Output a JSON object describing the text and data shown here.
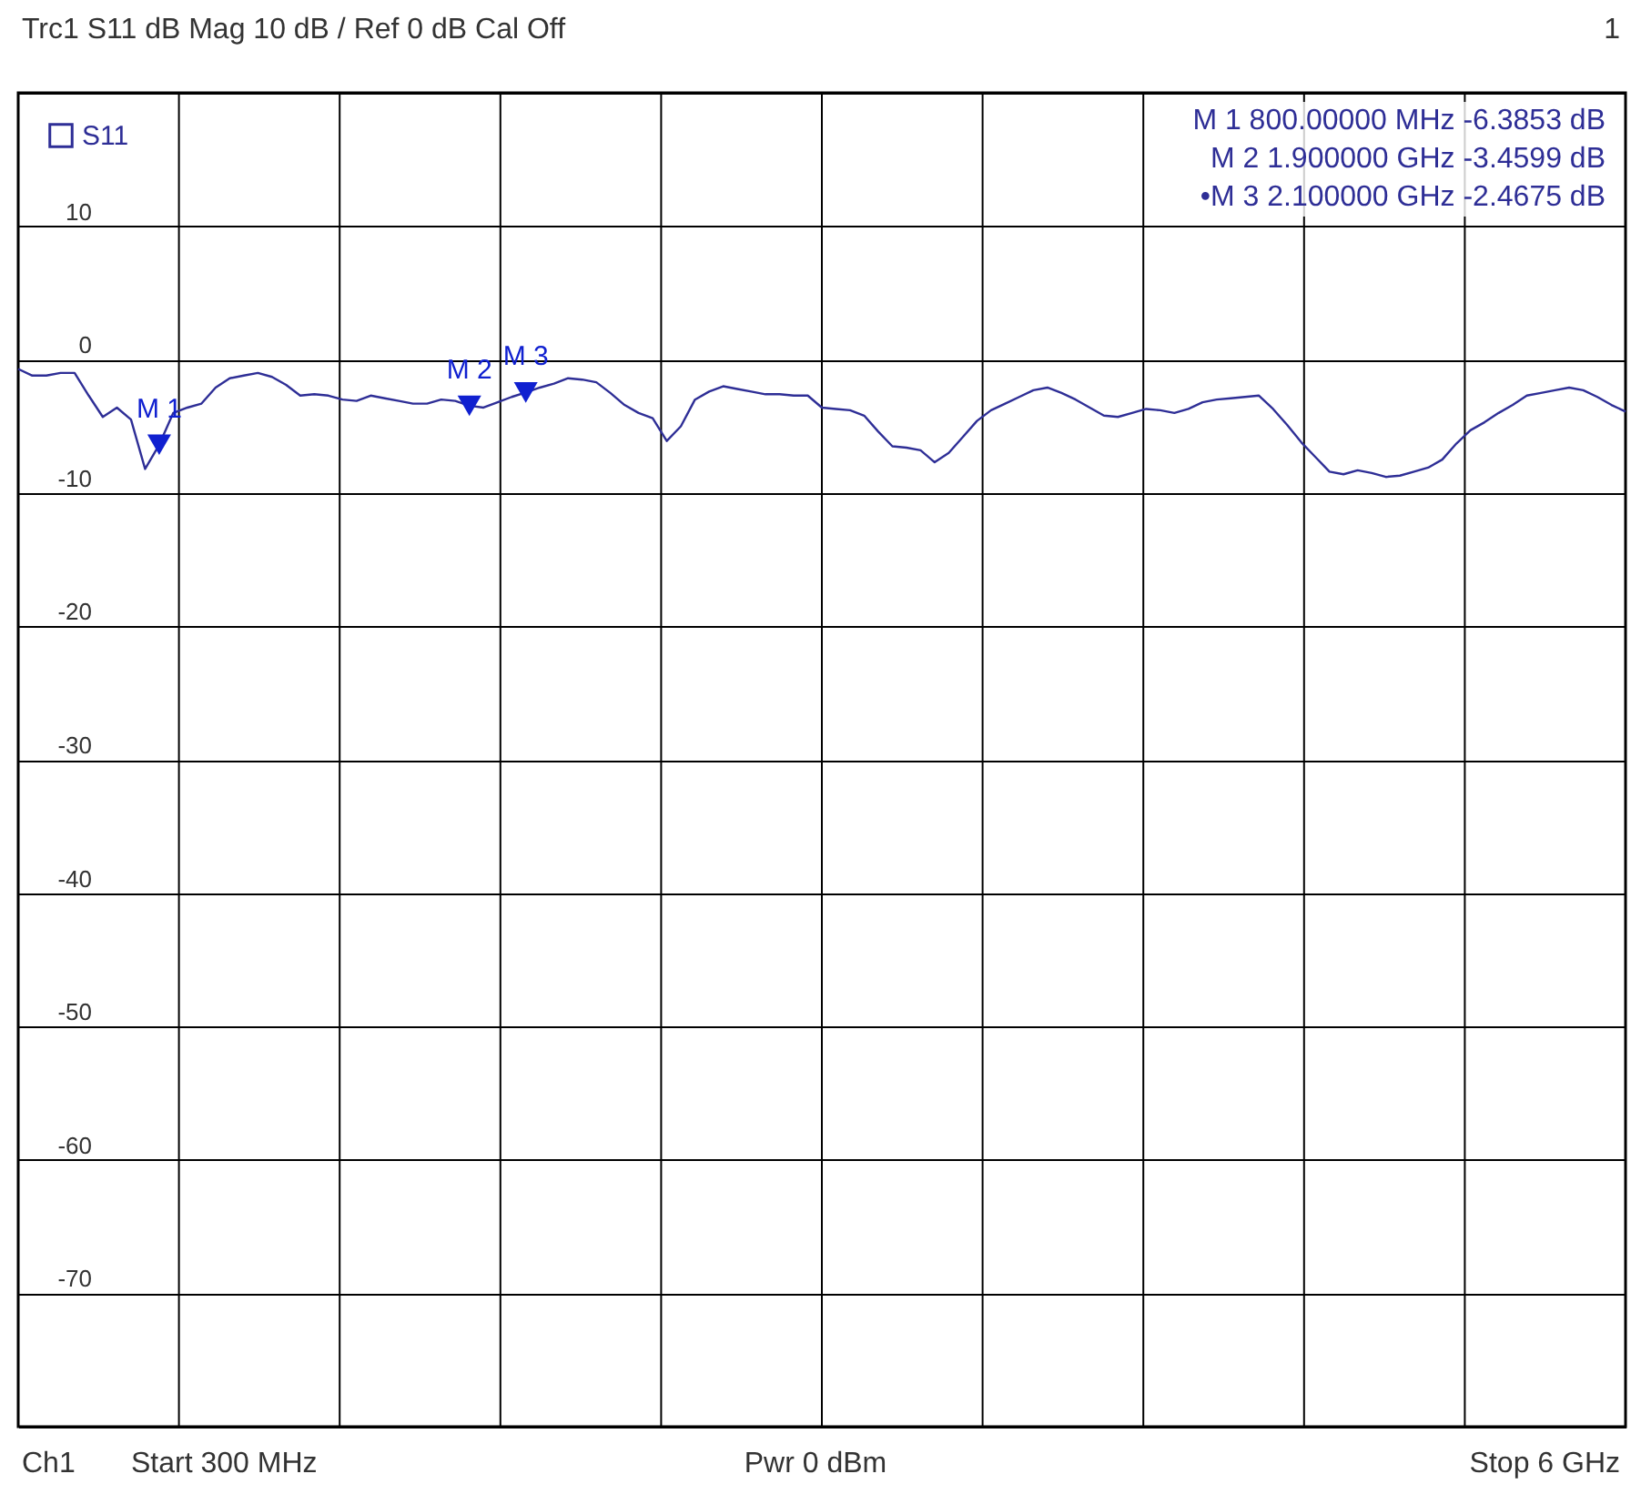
{
  "chart_data": {
    "type": "line",
    "title": "Trc1 S11 dB Mag 10 dB / Ref 0 dB Cal Off",
    "categories": [
      null,
      null,
      null,
      null,
      null,
      null,
      null,
      null,
      null,
      null,
      null,
      null,
      null,
      null,
      null,
      null,
      null,
      null,
      null,
      null,
      null,
      null,
      null,
      null,
      null,
      null,
      null,
      null,
      null,
      null,
      null,
      null,
      null,
      null,
      null,
      null,
      null,
      null,
      null,
      null,
      null,
      null,
      null,
      null,
      null,
      null,
      null,
      null,
      null,
      null,
      null,
      null,
      null,
      null,
      null,
      null,
      null,
      null,
      null,
      null,
      null,
      null,
      null,
      null,
      null,
      null,
      null,
      null,
      null,
      null,
      null,
      null,
      null,
      null,
      null,
      null,
      null,
      null,
      null,
      null,
      null,
      null,
      null,
      null,
      null,
      null,
      null,
      null,
      null,
      null,
      null,
      null,
      null,
      null,
      null,
      null,
      null,
      null,
      null,
      null,
      null,
      null,
      null,
      null,
      null,
      null,
      null,
      null,
      null,
      null,
      null,
      null,
      null,
      null,
      null
    ],
    "series": [
      {
        "name": "S11",
        "color": "#2e2e96",
        "values": [
          -0.7,
          -1.2,
          -1.2,
          -1.0,
          -1.0,
          -2.7,
          -4.3,
          -3.6,
          -4.5,
          -8.2,
          -6.3853,
          -4.0,
          -3.6,
          -3.3,
          -2.1,
          -1.4,
          -1.2,
          -1.0,
          -1.3,
          -1.9,
          -2.7,
          -2.6,
          -2.7,
          -3.0,
          -3.1,
          -2.7,
          -2.9,
          -3.1,
          -3.3,
          -3.3,
          -3.0,
          -3.1,
          -3.4599,
          -3.6,
          -3.2,
          -2.8,
          -2.4675,
          -2.1,
          -1.8,
          -1.4,
          -1.5,
          -1.7,
          -2.5,
          -3.4,
          -4.0,
          -4.4,
          -6.1,
          -5.0,
          -3.0,
          -2.4,
          -2.0,
          -2.2,
          -2.4,
          -2.6,
          -2.6,
          -2.7,
          -2.7,
          -3.6,
          -3.7,
          -3.8,
          -4.2,
          -5.4,
          -6.5,
          -6.6,
          -6.8,
          -7.7,
          -7.0,
          -5.8,
          -4.6,
          -3.8,
          -3.3,
          -2.8,
          -2.3,
          -2.1,
          -2.5,
          -3.0,
          -3.6,
          -4.2,
          -4.3,
          -4.0,
          -3.7,
          -3.8,
          -4.0,
          -3.7,
          -3.2,
          -3.0,
          -2.9,
          -2.8,
          -2.7,
          -3.7,
          -4.9,
          -6.2,
          -7.3,
          -8.4,
          -8.6,
          -8.3,
          -8.5,
          -8.8,
          -8.7,
          -8.4,
          -8.1,
          -7.5,
          -6.3,
          -5.3,
          -4.7,
          -4.0,
          -3.4,
          -2.7,
          -2.5,
          -2.3,
          -2.1,
          -2.3,
          -2.8,
          -3.4,
          -3.9
        ]
      },
      {
        "type": "scatter",
        "marker": "triangle",
        "color": "#1020d0",
        "values": [
          null,
          null,
          null,
          null,
          null,
          null,
          null,
          null,
          null,
          null,
          -6.3853,
          null,
          null,
          null,
          null,
          null,
          null,
          null,
          null,
          null,
          null,
          null,
          null,
          null,
          null,
          null,
          null,
          null,
          null,
          null,
          null,
          null,
          -3.4599,
          null,
          null,
          null,
          -2.4675,
          null,
          null,
          null,
          null,
          null,
          null,
          null,
          null,
          null,
          null,
          null,
          null,
          null,
          null,
          null,
          null,
          null,
          null,
          null,
          null,
          null,
          null,
          null,
          null,
          null,
          null,
          null,
          null,
          null,
          null,
          null,
          null,
          null,
          null,
          null,
          null,
          null,
          null,
          null,
          null,
          null,
          null,
          null,
          null,
          null,
          null,
          null,
          null,
          null,
          null,
          null,
          null,
          null,
          null,
          null,
          null,
          null,
          null,
          null,
          null,
          null,
          null,
          null,
          null,
          null,
          null,
          null,
          null,
          null,
          null,
          null,
          null,
          null,
          null,
          null,
          null,
          null,
          null
        ],
        "value_labels": [
          null,
          null,
          null,
          null,
          null,
          null,
          null,
          null,
          null,
          null,
          "M 1",
          null,
          null,
          null,
          null,
          null,
          null,
          null,
          null,
          null,
          null,
          null,
          null,
          null,
          null,
          null,
          null,
          null,
          null,
          null,
          null,
          null,
          "M 2",
          null,
          null,
          null,
          "M 3",
          null,
          null,
          null,
          null,
          null,
          null,
          null,
          null,
          null,
          null,
          null,
          null,
          null,
          null,
          null,
          null,
          null,
          null,
          null,
          null,
          null,
          null,
          null,
          null,
          null,
          null,
          null,
          null,
          null,
          null,
          null,
          null,
          null,
          null,
          null,
          null,
          null,
          null,
          null,
          null,
          null,
          null,
          null,
          null,
          null,
          null,
          null,
          null,
          null,
          null,
          null,
          null,
          null,
          null,
          null,
          null,
          null,
          null,
          null,
          null,
          null,
          null,
          null,
          null,
          null,
          null,
          null,
          null,
          null,
          null,
          null,
          null,
          null,
          null,
          null,
          null,
          null,
          null
        ]
      }
    ],
    "ylim": [
      -80,
      20
    ],
    "yticks": [
      {
        "value": 20,
        "label": null
      },
      10,
      0,
      -10,
      -20,
      -30,
      -40,
      -50,
      -60,
      -70,
      {
        "value": -80,
        "label": null
      }
    ],
    "grid": true,
    "legend": "top left",
    "marker": "none",
    "line_style": "solid",
    "annotations": [
      "1",
      "M 1 800.00000 MHz -6.3853 dB",
      "M 2 1.900000 GHz -3.4599 dB",
      "•M 3 2.100000 GHz -2.4675 dB",
      "Ch1",
      "Start 300 MHz",
      "Pwr 0 dBm",
      "Stop 6 GHz"
    ]
  }
}
